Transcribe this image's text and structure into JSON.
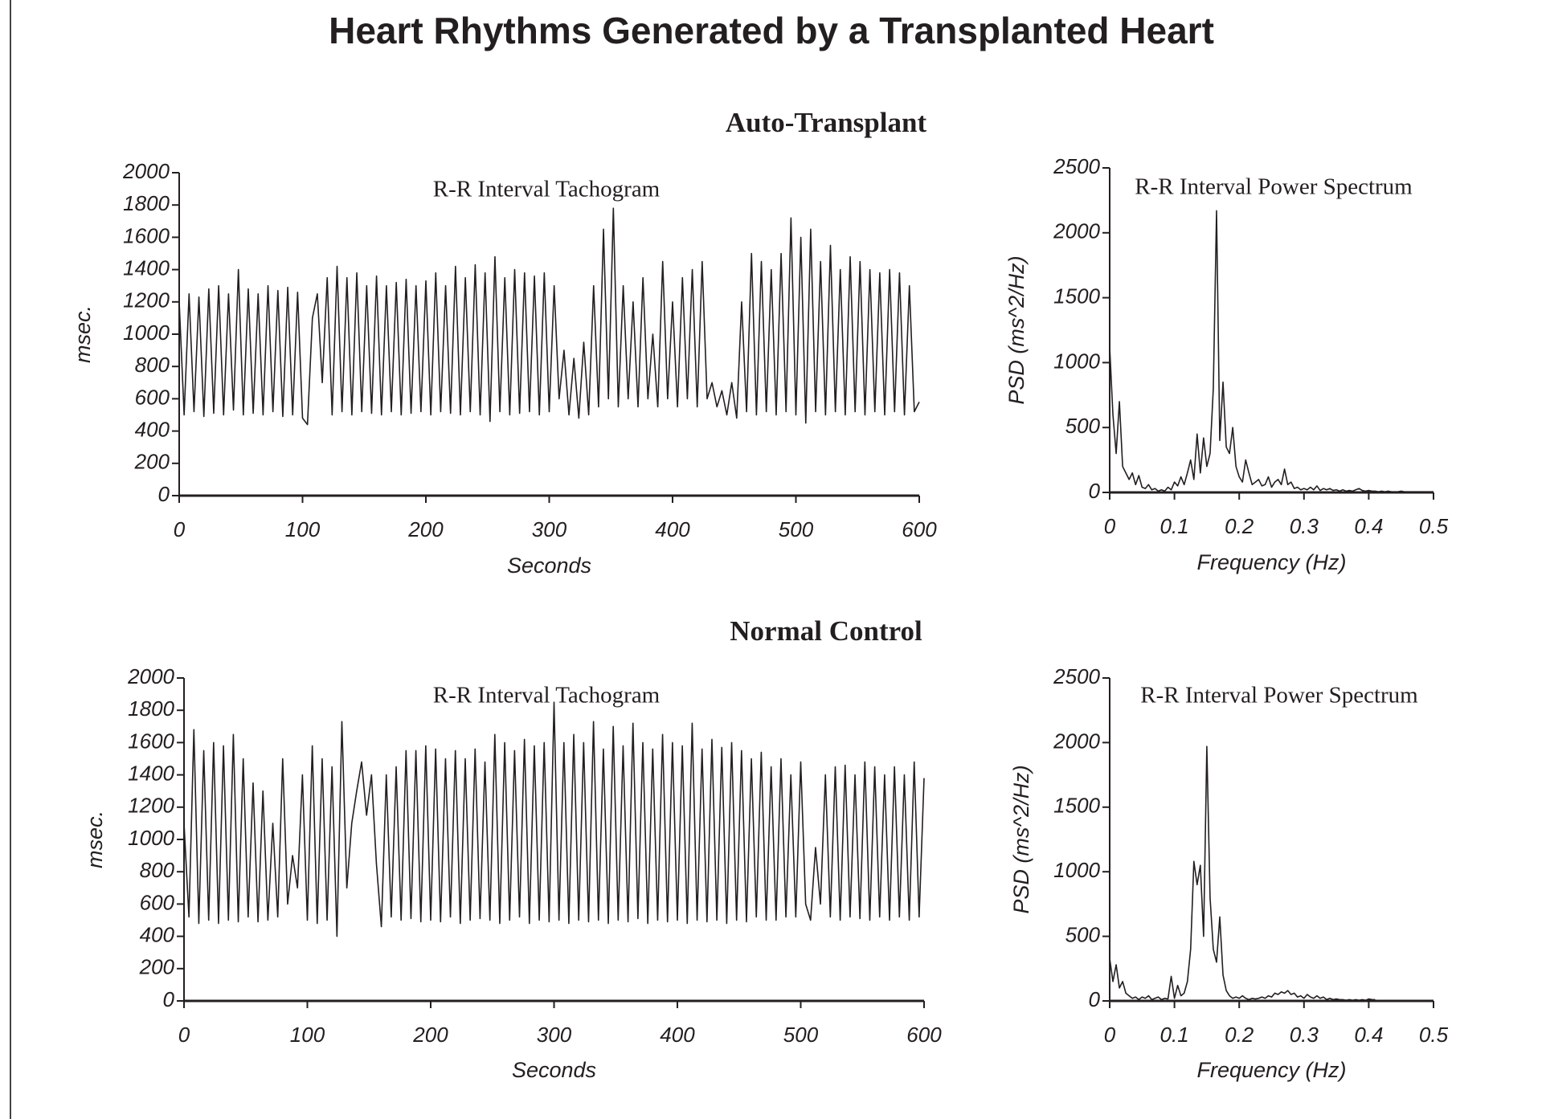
{
  "title": "Heart Rhythms Generated by a Transplanted Heart",
  "sections": [
    "Auto-Transplant",
    "Normal Control"
  ],
  "chart_data": [
    {
      "type": "line",
      "title": "R-R Interval Tachogram",
      "xlabel": "Seconds",
      "ylabel": "msec.",
      "xlim": [
        0,
        600
      ],
      "ylim": [
        0,
        2000
      ],
      "xticks": [
        0,
        100,
        200,
        300,
        400,
        500,
        600
      ],
      "yticks": [
        0,
        200,
        400,
        600,
        800,
        1000,
        1200,
        1400,
        1600,
        1800,
        2000
      ],
      "x": [
        0,
        4,
        8,
        12,
        16,
        20,
        24,
        28,
        32,
        36,
        40,
        44,
        48,
        52,
        56,
        60,
        64,
        68,
        72,
        76,
        80,
        84,
        88,
        92,
        96,
        100,
        104,
        108,
        112,
        116,
        120,
        124,
        128,
        132,
        136,
        140,
        144,
        148,
        152,
        156,
        160,
        164,
        168,
        172,
        176,
        180,
        184,
        188,
        192,
        196,
        200,
        204,
        208,
        212,
        216,
        220,
        224,
        228,
        232,
        236,
        240,
        244,
        248,
        252,
        256,
        260,
        264,
        268,
        272,
        276,
        280,
        284,
        288,
        292,
        296,
        300,
        304,
        308,
        312,
        316,
        320,
        324,
        328,
        332,
        336,
        340,
        344,
        348,
        352,
        356,
        360,
        364,
        368,
        372,
        376,
        380,
        384,
        388,
        392,
        396,
        400,
        404,
        408,
        412,
        416,
        420,
        424,
        428,
        432,
        436,
        440,
        444,
        448,
        452,
        456,
        460,
        464,
        468,
        472,
        476,
        480,
        484,
        488,
        492,
        496,
        500,
        504,
        508,
        512,
        516,
        520,
        524,
        528,
        532,
        536,
        540,
        544,
        548,
        552,
        556,
        560,
        564,
        568,
        572,
        576,
        580,
        584,
        588,
        592,
        596,
        600
      ],
      "series": [
        {
          "color": "#231f20",
          "values": [
            1200,
            500,
            1250,
            520,
            1230,
            490,
            1280,
            510,
            1300,
            500,
            1250,
            530,
            1400,
            500,
            1280,
            510,
            1250,
            500,
            1300,
            520,
            1270,
            490,
            1290,
            500,
            1260,
            480,
            440,
            1100,
            1250,
            700,
            1350,
            500,
            1420,
            520,
            1350,
            500,
            1380,
            520,
            1300,
            510,
            1360,
            500,
            1300,
            520,
            1320,
            500,
            1340,
            510,
            1300,
            520,
            1330,
            500,
            1380,
            520,
            1300,
            510,
            1420,
            500,
            1350,
            520,
            1430,
            500,
            1380,
            460,
            1480,
            520,
            1350,
            500,
            1400,
            510,
            1380,
            520,
            1360,
            500,
            1380,
            520,
            1300,
            600,
            900,
            500,
            850,
            480,
            950,
            500,
            1300,
            550,
            1650,
            600,
            1780,
            550,
            1300,
            600,
            1200,
            550,
            1350,
            600,
            1000,
            550,
            1450,
            600,
            1200,
            550,
            1350,
            600,
            1400,
            550,
            1450,
            600,
            700,
            550,
            650,
            500,
            700,
            480,
            1200,
            520,
            1500,
            500,
            1450,
            520,
            1400,
            500,
            1500,
            520,
            1720,
            500,
            1600,
            450,
            1650,
            520,
            1450,
            500,
            1550,
            520,
            1400,
            500,
            1480,
            520,
            1450,
            500,
            1400,
            520,
            1380,
            500,
            1400,
            520,
            1380,
            500,
            1300,
            520,
            580
          ]
        }
      ]
    },
    {
      "type": "line",
      "title": "R-R Interval Power Spectrum",
      "xlabel": "Frequency (Hz)",
      "ylabel": "PSD (ms^2/Hz)",
      "xlim": [
        0,
        0.5
      ],
      "ylim": [
        0,
        2500
      ],
      "xticks": [
        0,
        0.1,
        0.2,
        0.3,
        0.4,
        0.5
      ],
      "yticks": [
        0,
        500,
        1000,
        1500,
        2000,
        2500
      ],
      "x": [
        0,
        0.005,
        0.01,
        0.015,
        0.02,
        0.025,
        0.03,
        0.035,
        0.04,
        0.045,
        0.05,
        0.055,
        0.06,
        0.065,
        0.07,
        0.075,
        0.08,
        0.085,
        0.09,
        0.095,
        0.1,
        0.105,
        0.11,
        0.115,
        0.12,
        0.125,
        0.13,
        0.135,
        0.14,
        0.145,
        0.15,
        0.155,
        0.16,
        0.165,
        0.17,
        0.175,
        0.18,
        0.185,
        0.19,
        0.195,
        0.2,
        0.205,
        0.21,
        0.215,
        0.22,
        0.225,
        0.23,
        0.235,
        0.24,
        0.245,
        0.25,
        0.255,
        0.26,
        0.265,
        0.27,
        0.275,
        0.28,
        0.285,
        0.29,
        0.295,
        0.3,
        0.305,
        0.31,
        0.315,
        0.32,
        0.325,
        0.33,
        0.335,
        0.34,
        0.345,
        0.35,
        0.355,
        0.36,
        0.365,
        0.37,
        0.375,
        0.38,
        0.385,
        0.39,
        0.395,
        0.4,
        0.405,
        0.41,
        0.415,
        0.42,
        0.425,
        0.43,
        0.435,
        0.44,
        0.445,
        0.45,
        0.455,
        0.46,
        0.465,
        0.47,
        0.475,
        0.48,
        0.485,
        0.49,
        0.495,
        0.5
      ],
      "series": [
        {
          "color": "#231f20",
          "values": [
            1120,
            600,
            300,
            700,
            200,
            150,
            100,
            150,
            60,
            130,
            40,
            30,
            60,
            20,
            30,
            10,
            20,
            10,
            40,
            20,
            80,
            50,
            120,
            60,
            150,
            250,
            100,
            450,
            150,
            420,
            200,
            300,
            800,
            2170,
            400,
            850,
            350,
            300,
            500,
            200,
            120,
            80,
            250,
            150,
            60,
            80,
            100,
            50,
            60,
            120,
            40,
            80,
            100,
            60,
            180,
            60,
            80,
            30,
            40,
            20,
            30,
            20,
            40,
            20,
            50,
            15,
            30,
            20,
            30,
            15,
            20,
            10,
            20,
            10,
            15,
            10,
            20,
            30,
            15,
            10,
            15,
            10,
            10,
            5,
            10,
            5,
            10,
            5,
            5,
            5,
            10,
            5,
            5,
            5,
            5,
            5,
            5,
            5,
            5,
            5,
            5
          ]
        }
      ]
    },
    {
      "type": "line",
      "title": "R-R Interval Tachogram",
      "xlabel": "Seconds",
      "ylabel": "msec.",
      "xlim": [
        0,
        600
      ],
      "ylim": [
        0,
        2000
      ],
      "xticks": [
        0,
        100,
        200,
        300,
        400,
        500,
        600
      ],
      "yticks": [
        0,
        200,
        400,
        600,
        800,
        1000,
        1200,
        1400,
        1600,
        1800,
        2000
      ],
      "x": [
        0,
        4,
        8,
        12,
        16,
        20,
        24,
        28,
        32,
        36,
        40,
        44,
        48,
        52,
        56,
        60,
        64,
        68,
        72,
        76,
        80,
        84,
        88,
        92,
        96,
        100,
        104,
        108,
        112,
        116,
        120,
        124,
        128,
        132,
        136,
        140,
        144,
        148,
        152,
        156,
        160,
        164,
        168,
        172,
        176,
        180,
        184,
        188,
        192,
        196,
        200,
        204,
        208,
        212,
        216,
        220,
        224,
        228,
        232,
        236,
        240,
        244,
        248,
        252,
        256,
        260,
        264,
        268,
        272,
        276,
        280,
        284,
        288,
        292,
        296,
        300,
        304,
        308,
        312,
        316,
        320,
        324,
        328,
        332,
        336,
        340,
        344,
        348,
        352,
        356,
        360,
        364,
        368,
        372,
        376,
        380,
        384,
        388,
        392,
        396,
        400,
        404,
        408,
        412,
        416,
        420,
        424,
        428,
        432,
        436,
        440,
        444,
        448,
        452,
        456,
        460,
        464,
        468,
        472,
        476,
        480,
        484,
        488,
        492,
        496,
        500,
        504,
        508,
        512,
        516,
        520,
        524,
        528,
        532,
        536,
        540,
        544,
        548,
        552,
        556,
        560,
        564,
        568,
        572,
        576,
        580,
        584,
        588,
        592,
        596,
        600
      ],
      "series": [
        {
          "color": "#231f20",
          "values": [
            1100,
            520,
            1680,
            480,
            1550,
            500,
            1600,
            480,
            1580,
            500,
            1650,
            490,
            1500,
            520,
            1350,
            490,
            1300,
            500,
            1100,
            520,
            1500,
            600,
            900,
            700,
            1400,
            500,
            1580,
            480,
            1500,
            500,
            1450,
            400,
            1730,
            700,
            1100,
            1300,
            1480,
            1150,
            1400,
            850,
            460,
            1400,
            520,
            1450,
            500,
            1550,
            510,
            1550,
            490,
            1580,
            500,
            1560,
            490,
            1500,
            520,
            1550,
            480,
            1500,
            500,
            1560,
            510,
            1480,
            500,
            1650,
            480,
            1600,
            500,
            1550,
            520,
            1620,
            480,
            1580,
            500,
            1600,
            490,
            1850,
            500,
            1600,
            480,
            1650,
            500,
            1600,
            490,
            1730,
            500,
            1560,
            480,
            1700,
            500,
            1580,
            490,
            1720,
            510,
            1600,
            480,
            1560,
            500,
            1650,
            490,
            1600,
            500,
            1580,
            480,
            1720,
            500,
            1560,
            490,
            1620,
            500,
            1570,
            480,
            1600,
            500,
            1550,
            490,
            1500,
            520,
            1540,
            500,
            1450,
            500,
            1500,
            520,
            1400,
            520,
            1480,
            600,
            500,
            950,
            600,
            1400,
            520,
            1450,
            500,
            1460,
            520,
            1400,
            510,
            1480,
            500,
            1450,
            520,
            1400,
            500,
            1450,
            520,
            1400,
            500,
            1480,
            520,
            1380
          ]
        }
      ]
    },
    {
      "type": "line",
      "title": "R-R Interval Power Spectrum",
      "xlabel": "Frequency (Hz)",
      "ylabel": "PSD (ms^2/Hz)",
      "xlim": [
        0,
        0.5
      ],
      "ylim": [
        0,
        2500
      ],
      "xticks": [
        0,
        0.1,
        0.2,
        0.3,
        0.4,
        0.5
      ],
      "yticks": [
        0,
        500,
        1000,
        1500,
        2000,
        2500
      ],
      "x": [
        0,
        0.005,
        0.01,
        0.015,
        0.02,
        0.025,
        0.03,
        0.035,
        0.04,
        0.045,
        0.05,
        0.055,
        0.06,
        0.065,
        0.07,
        0.075,
        0.08,
        0.085,
        0.09,
        0.095,
        0.1,
        0.105,
        0.11,
        0.115,
        0.12,
        0.125,
        0.13,
        0.135,
        0.14,
        0.145,
        0.15,
        0.155,
        0.16,
        0.165,
        0.17,
        0.175,
        0.18,
        0.185,
        0.19,
        0.195,
        0.2,
        0.205,
        0.21,
        0.215,
        0.22,
        0.225,
        0.23,
        0.235,
        0.24,
        0.245,
        0.25,
        0.255,
        0.26,
        0.265,
        0.27,
        0.275,
        0.28,
        0.285,
        0.29,
        0.295,
        0.3,
        0.305,
        0.31,
        0.315,
        0.32,
        0.325,
        0.33,
        0.335,
        0.34,
        0.345,
        0.35,
        0.355,
        0.36,
        0.365,
        0.37,
        0.375,
        0.38,
        0.385,
        0.39,
        0.395,
        0.4,
        0.405,
        0.41,
        0.415,
        0.42,
        0.425,
        0.43,
        0.435,
        0.44,
        0.445,
        0.45,
        0.455,
        0.46,
        0.465,
        0.47,
        0.475,
        0.48,
        0.485,
        0.49,
        0.495,
        0.5
      ],
      "series": [
        {
          "color": "#231f20",
          "values": [
            330,
            150,
            280,
            100,
            150,
            60,
            40,
            20,
            30,
            10,
            30,
            20,
            40,
            10,
            20,
            30,
            10,
            20,
            15,
            190,
            20,
            120,
            40,
            60,
            150,
            400,
            1080,
            900,
            1050,
            500,
            1970,
            800,
            400,
            300,
            650,
            200,
            80,
            40,
            20,
            30,
            20,
            40,
            20,
            10,
            20,
            15,
            20,
            30,
            20,
            40,
            30,
            60,
            50,
            70,
            60,
            80,
            50,
            60,
            30,
            40,
            20,
            50,
            30,
            20,
            40,
            20,
            30,
            10,
            20,
            10,
            15,
            10,
            10,
            5,
            10,
            5,
            10,
            5,
            10,
            5,
            15,
            10,
            10,
            null,
            null,
            null,
            null,
            null,
            null,
            null,
            null,
            null,
            null,
            null,
            null,
            null,
            null,
            null,
            null,
            null,
            null
          ]
        }
      ]
    }
  ]
}
